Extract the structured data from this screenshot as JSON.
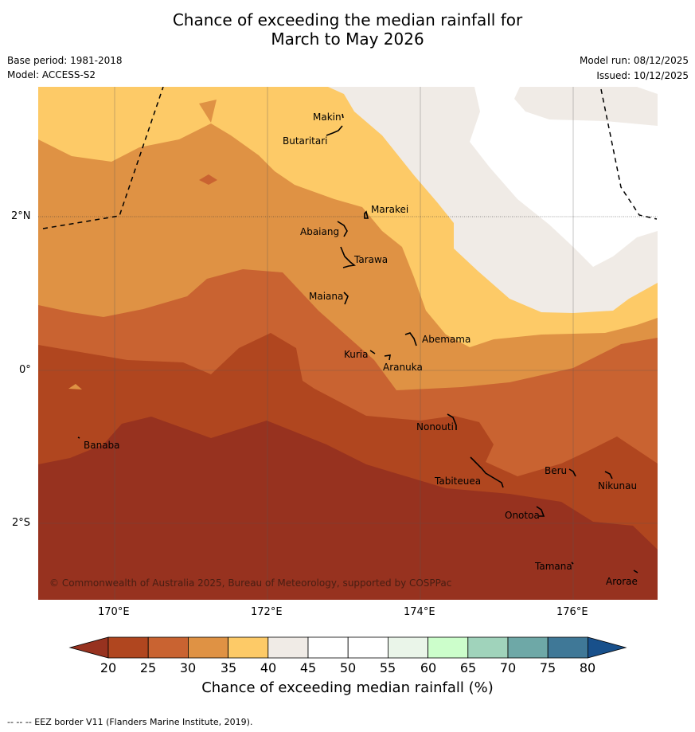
{
  "title_line1": "Chance of exceeding the median rainfall for",
  "title_line2": "March to May 2026",
  "meta": {
    "base_period": "Base period: 1981-2018",
    "model": "Model: ACCESS-S2",
    "model_run": "Model run: 08/12/2025",
    "issued": "Issued: 10/12/2025"
  },
  "axes": {
    "lat_labels": [
      "2°N",
      "0°",
      "2°S"
    ],
    "lon_labels": [
      "170°E",
      "172°E",
      "174°E",
      "176°E"
    ]
  },
  "places": {
    "makin": "Makin",
    "butaritari": "Butaritari",
    "marakei": "Marakei",
    "abaiang": "Abaiang",
    "tarawa": "Tarawa",
    "maiana": "Maiana",
    "abemama": "Abemama",
    "kuria": "Kuria",
    "aranuka": "Aranuka",
    "nonouti": "Nonouti",
    "banaba": "Banaba",
    "beru": "Beru",
    "nikunau": "Nikunau",
    "tabiteuea": "Tabiteuea",
    "onotoa": "Onotoa",
    "tamana": "Tamana",
    "arorae": "Arorae"
  },
  "copyright": "© Commonwealth of Australia 2025, Bureau of Meteorology, supported by COSPPac",
  "colorbar": {
    "title": "Chance of exceeding median rainfall (%)",
    "ticks": [
      "20",
      "25",
      "30",
      "35",
      "40",
      "45",
      "50",
      "55",
      "60",
      "65",
      "70",
      "75",
      "80"
    ],
    "colors": {
      "below20": "#97321f",
      "c20_25": "#b0461f",
      "c25_30": "#c96331",
      "c30_35": "#df9244",
      "c35_40": "#fdca67",
      "c40_45": "#f0ebe6",
      "c45_50": "#ffffff",
      "c50_55": "#ffffff",
      "c55_60": "#eaf5e9",
      "c60_65": "#ccfecb",
      "c65_70": "#a0d3bb",
      "c70_75": "#6ea8a7",
      "c75_80": "#3f7897",
      "above80": "#18508b"
    }
  },
  "footnote": "--  --  -- EEZ border V11 (Flanders Marine Institute, 2019)."
}
